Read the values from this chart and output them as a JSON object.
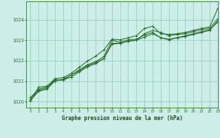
{
  "title": "Graphe pression niveau de la mer (hPa)",
  "bg_color": "#cceee8",
  "grid_color": "#99ccbb",
  "line_color": "#2d6e2d",
  "xlabel_color": "#1a4a1a",
  "xlim": [
    -0.5,
    23
  ],
  "ylim": [
    1019.7,
    1024.9
  ],
  "yticks": [
    1020,
    1021,
    1022,
    1023,
    1024
  ],
  "xticks": [
    0,
    1,
    2,
    3,
    4,
    5,
    6,
    7,
    8,
    9,
    10,
    11,
    12,
    13,
    14,
    15,
    16,
    17,
    18,
    19,
    20,
    21,
    22,
    23
  ],
  "lines": [
    [
      1020.05,
      1020.7,
      1020.75,
      1021.05,
      1021.05,
      1021.3,
      1021.55,
      1021.8,
      1021.95,
      1022.2,
      1023.0,
      1022.9,
      1023.02,
      1023.05,
      1023.25,
      1023.38,
      1023.12,
      1023.05,
      1023.12,
      1023.22,
      1023.32,
      1023.42,
      1023.52,
      1023.88
    ],
    [
      1020.1,
      1020.55,
      1020.65,
      1021.05,
      1021.05,
      1021.2,
      1021.45,
      1021.7,
      1021.85,
      1022.1,
      1022.85,
      1022.85,
      1022.95,
      1023.0,
      1023.15,
      1023.32,
      1023.12,
      1023.02,
      1023.12,
      1023.18,
      1023.28,
      1023.38,
      1023.48,
      1023.95
    ],
    [
      1020.05,
      1020.5,
      1020.6,
      1021.0,
      1021.1,
      1021.3,
      1021.5,
      1021.75,
      1021.9,
      1022.1,
      1022.8,
      1022.85,
      1022.95,
      1023.0,
      1023.32,
      1023.48,
      1023.38,
      1023.22,
      1023.28,
      1023.32,
      1023.42,
      1023.52,
      1023.58,
      1024.05
    ],
    [
      1020.2,
      1020.6,
      1020.72,
      1021.12,
      1021.17,
      1021.38,
      1021.68,
      1021.98,
      1022.22,
      1022.52,
      1023.05,
      1023.02,
      1023.12,
      1023.22,
      1023.58,
      1023.68,
      1023.32,
      1023.28,
      1023.32,
      1023.38,
      1023.48,
      1023.58,
      1023.65,
      1024.55
    ]
  ]
}
